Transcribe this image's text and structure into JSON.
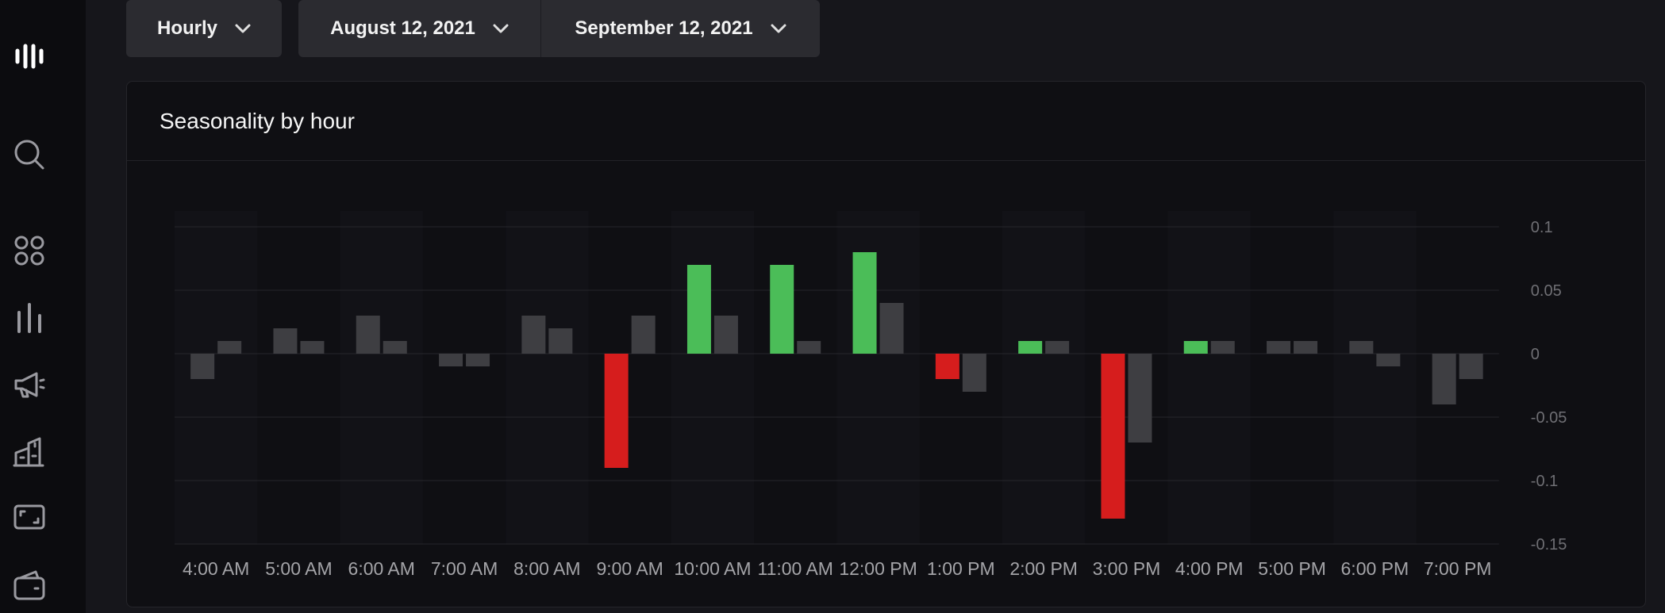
{
  "sidebar": {
    "items": [
      {
        "icon": "logo-bars-icon"
      },
      {
        "icon": "search-icon"
      },
      {
        "icon": "apps-grid-icon"
      },
      {
        "icon": "bar-chart-icon"
      },
      {
        "icon": "megaphone-icon"
      },
      {
        "icon": "buildings-icon"
      },
      {
        "icon": "screen-frame-icon"
      },
      {
        "icon": "wallet-icon"
      }
    ]
  },
  "toolbar": {
    "interval": "Hourly",
    "start_date": "August 12, 2021",
    "end_date": "September 12, 2021"
  },
  "card": {
    "title": "Seasonality by hour"
  },
  "colors": {
    "positive": "#4bbd58",
    "negative": "#d61d1d",
    "secondary": "#3e3e42",
    "grid": "#26262b",
    "axis_text": "#6f6f74",
    "category_text": "#a4a4a8"
  },
  "chart_data": {
    "type": "bar",
    "categories": [
      "4:00 AM",
      "5:00 AM",
      "6:00 AM",
      "7:00 AM",
      "8:00 AM",
      "9:00 AM",
      "10:00 AM",
      "11:00 AM",
      "12:00 PM",
      "1:00 PM",
      "2:00 PM",
      "3:00 PM",
      "4:00 PM",
      "5:00 PM",
      "6:00 PM",
      "7:00 PM"
    ],
    "series": [
      {
        "values": [
          -0.02,
          0.02,
          0.03,
          -0.01,
          0.03,
          -0.09,
          0.07,
          0.07,
          0.08,
          -0.02,
          0.01,
          -0.13,
          0.01,
          0.01,
          0.01,
          -0.04
        ]
      },
      {
        "values": [
          0.01,
          0.01,
          0.01,
          -0.01,
          0.02,
          0.03,
          0.03,
          0.01,
          0.04,
          -0.03,
          0.01,
          -0.07,
          0.01,
          0.01,
          -0.01,
          -0.02
        ]
      }
    ],
    "highlighted": [
      false,
      false,
      false,
      false,
      false,
      true,
      true,
      true,
      true,
      true,
      true,
      true,
      true,
      false,
      false,
      false
    ],
    "y_ticks": [
      "0.1",
      "0.05",
      "0",
      "-0.05",
      "-0.1",
      "-0.15"
    ],
    "ylim": [
      -0.15,
      0.1
    ],
    "yaxis_position": "right",
    "grid": true
  }
}
